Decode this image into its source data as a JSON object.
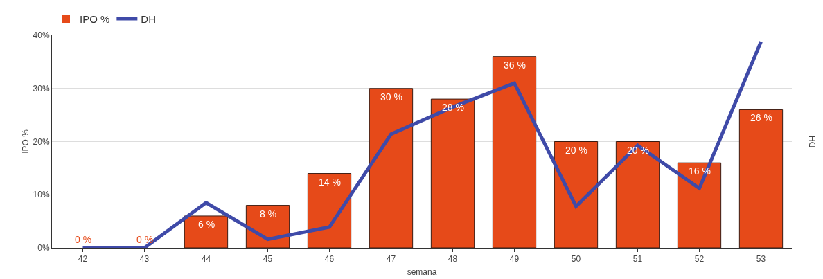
{
  "chart_data": {
    "type": "bar",
    "xlabel": "semana",
    "ylabel": "IPO %",
    "y2label": "DH",
    "categories": [
      "42",
      "43",
      "44",
      "45",
      "46",
      "47",
      "48",
      "49",
      "50",
      "51",
      "52",
      "53"
    ],
    "series": [
      {
        "name": "IPO %",
        "color": "#e64a19",
        "values": [
          0,
          0,
          6,
          8,
          14,
          30,
          28,
          36,
          20,
          20,
          16,
          26
        ],
        "value_labels": [
          "0 %",
          "0 %",
          "6 %",
          "8 %",
          "14 %",
          "30 %",
          "28 %",
          "36 %",
          "20 %",
          "20 %",
          "16 %",
          "26 %"
        ]
      },
      {
        "name": "DH",
        "type": "line",
        "color": "#3f4aa8",
        "values": [
          0,
          0,
          8.5,
          1.6,
          3.9,
          21.4,
          26.5,
          31,
          7.8,
          19.3,
          11.2,
          38.8
        ]
      }
    ],
    "ylim": [
      0,
      40
    ],
    "yticks": [
      {
        "value": 0,
        "label": "0%"
      },
      {
        "value": 10,
        "label": "10%"
      },
      {
        "value": 20,
        "label": "20%"
      },
      {
        "value": 30,
        "label": "30%"
      },
      {
        "value": 40,
        "label": "40%"
      }
    ],
    "grid": "y",
    "legend": "top left",
    "marker": "none",
    "line_style": "solid"
  }
}
